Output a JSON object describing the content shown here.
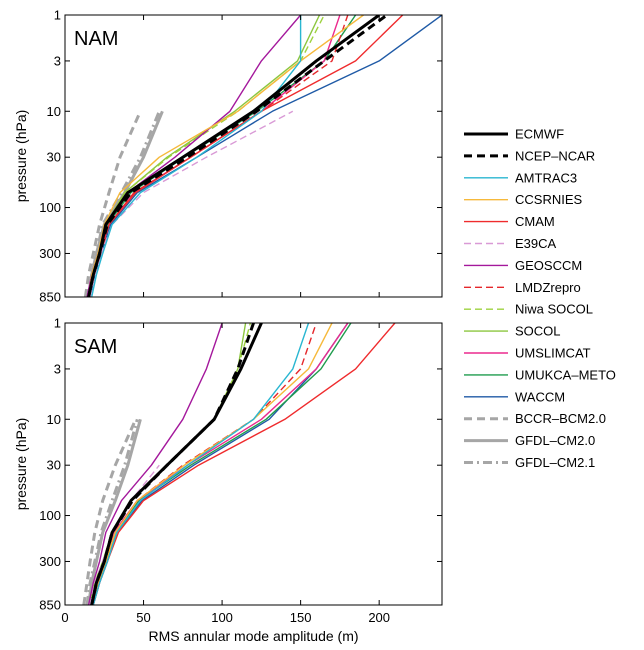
{
  "chart_data": [
    {
      "type": "line",
      "panel_label": "NAM",
      "xlim": [
        0,
        240
      ],
      "ylim": [
        850,
        1
      ],
      "yscale": "log",
      "xticks": [
        0,
        50,
        100,
        150,
        200
      ],
      "yticks": [
        1,
        3,
        10,
        30,
        100,
        300,
        850
      ],
      "ylabel": "pressure (hPa)",
      "xlabel": "",
      "grid": false,
      "series": [
        {
          "name": "ECMWF",
          "x": [
            15,
            18,
            22,
            26,
            40,
            75,
            120,
            160,
            200
          ],
          "y": [
            850,
            500,
            300,
            150,
            70,
            30,
            10,
            3,
            1
          ]
        },
        {
          "name": "NCEP–NCAR",
          "x": [
            15,
            18,
            22,
            27,
            42,
            78,
            122,
            165,
            205
          ],
          "y": [
            850,
            500,
            300,
            150,
            70,
            30,
            10,
            3,
            1
          ]
        },
        {
          "name": "AMTRAC3",
          "x": [
            17,
            20,
            24,
            30,
            48,
            84,
            125,
            150,
            150
          ],
          "y": [
            850,
            500,
            300,
            150,
            70,
            30,
            10,
            3,
            1
          ]
        },
        {
          "name": "CCSRNIES",
          "x": [
            15,
            17,
            21,
            25,
            35,
            60,
            110,
            150,
            190
          ],
          "y": [
            850,
            500,
            300,
            150,
            70,
            30,
            10,
            3,
            1
          ]
        },
        {
          "name": "CMAM",
          "x": [
            15,
            18,
            22,
            28,
            45,
            80,
            125,
            185,
            215
          ],
          "y": [
            850,
            500,
            300,
            150,
            70,
            30,
            10,
            3,
            1
          ]
        },
        {
          "name": "E39CA",
          "x": [
            16,
            19,
            23,
            30,
            50,
            90,
            145
          ],
          "y": [
            850,
            500,
            300,
            150,
            70,
            30,
            10
          ]
        },
        {
          "name": "GEOSCCM",
          "x": [
            14,
            17,
            21,
            26,
            40,
            70,
            105,
            125,
            150
          ],
          "y": [
            850,
            500,
            300,
            150,
            70,
            30,
            10,
            3,
            1
          ]
        },
        {
          "name": "LMDZrepro",
          "x": [
            15,
            18,
            23,
            28,
            44,
            80,
            125,
            170,
            180
          ],
          "y": [
            850,
            500,
            300,
            150,
            70,
            30,
            10,
            3,
            1
          ]
        },
        {
          "name": "Niwa SOCOL",
          "x": [
            15,
            17,
            21,
            26,
            38,
            66,
            110,
            150,
            165
          ],
          "y": [
            850,
            500,
            300,
            150,
            70,
            30,
            10,
            3,
            1
          ]
        },
        {
          "name": "SOCOL",
          "x": [
            15,
            17,
            21,
            26,
            38,
            65,
            108,
            148,
            162
          ],
          "y": [
            850,
            500,
            300,
            150,
            70,
            30,
            10,
            3,
            1
          ]
        },
        {
          "name": "UMSLIMCAT",
          "x": [
            15,
            18,
            22,
            28,
            44,
            80,
            125,
            165,
            175
          ],
          "y": [
            850,
            500,
            300,
            150,
            70,
            30,
            10,
            3,
            1
          ]
        },
        {
          "name": "UMUKCA–METO",
          "x": [
            15,
            18,
            22,
            27,
            42,
            76,
            122,
            165,
            185
          ],
          "y": [
            850,
            500,
            300,
            150,
            70,
            30,
            10,
            3,
            1
          ]
        },
        {
          "name": "WACCM",
          "x": [
            16,
            19,
            23,
            29,
            46,
            84,
            132,
            200,
            240
          ],
          "y": [
            850,
            500,
            300,
            150,
            70,
            30,
            10,
            3,
            1
          ]
        },
        {
          "name": "BCCR–BCM2.0",
          "x": [
            13,
            15,
            18,
            22,
            28,
            35,
            48
          ],
          "y": [
            850,
            500,
            300,
            150,
            70,
            30,
            10
          ]
        },
        {
          "name": "GFDL–CM2.0",
          "x": [
            15,
            17,
            20,
            25,
            38,
            50,
            62
          ],
          "y": [
            850,
            500,
            300,
            150,
            70,
            30,
            10
          ]
        },
        {
          "name": "GFDL–CM2.1",
          "x": [
            15,
            17,
            20,
            24,
            36,
            48,
            60
          ],
          "y": [
            850,
            500,
            300,
            150,
            70,
            30,
            10
          ]
        }
      ]
    },
    {
      "type": "line",
      "panel_label": "SAM",
      "xlim": [
        0,
        240
      ],
      "ylim": [
        850,
        1
      ],
      "yscale": "log",
      "xticks": [
        0,
        50,
        100,
        150,
        200
      ],
      "yticks": [
        1,
        3,
        10,
        30,
        100,
        300,
        850
      ],
      "ylabel": "pressure (hPa)",
      "xlabel": "RMS annular mode amplitude (m)",
      "grid": false,
      "series": [
        {
          "name": "ECMWF",
          "x": [
            17,
            20,
            25,
            30,
            42,
            65,
            95,
            112,
            125
          ],
          "y": [
            850,
            500,
            300,
            150,
            70,
            30,
            10,
            3,
            1
          ]
        },
        {
          "name": "NCEP–NCAR",
          "x": [
            17,
            20,
            25,
            30,
            43,
            65,
            95,
            110,
            120
          ],
          "y": [
            850,
            500,
            300,
            150,
            70,
            30,
            10,
            3,
            1
          ]
        },
        {
          "name": "AMTRAC3",
          "x": [
            18,
            22,
            27,
            33,
            48,
            78,
            120,
            145,
            155
          ],
          "y": [
            850,
            500,
            300,
            150,
            70,
            30,
            10,
            3,
            1
          ]
        },
        {
          "name": "CCSRNIES",
          "x": [
            17,
            21,
            26,
            32,
            46,
            76,
            120,
            155,
            170
          ],
          "y": [
            850,
            500,
            300,
            150,
            70,
            30,
            10,
            3,
            1
          ]
        },
        {
          "name": "CMAM",
          "x": [
            18,
            22,
            27,
            34,
            50,
            85,
            140,
            185,
            210
          ],
          "y": [
            850,
            500,
            300,
            150,
            70,
            30,
            10,
            3,
            1
          ]
        },
        {
          "name": "E39CA",
          "x": [
            16,
            19,
            24,
            30,
            42,
            60
          ],
          "y": [
            850,
            500,
            300,
            150,
            70,
            30
          ]
        },
        {
          "name": "GEOSCCM",
          "x": [
            15,
            18,
            22,
            26,
            36,
            55,
            75,
            90,
            100
          ],
          "y": [
            850,
            500,
            300,
            150,
            70,
            30,
            10,
            3,
            1
          ]
        },
        {
          "name": "LMDZrepro",
          "x": [
            17,
            21,
            26,
            32,
            46,
            75,
            120,
            150,
            160
          ],
          "y": [
            850,
            500,
            300,
            150,
            70,
            30,
            10,
            3,
            1
          ]
        },
        {
          "name": "Niwa SOCOL",
          "x": [
            16,
            19,
            24,
            30,
            42,
            65,
            95,
            110,
            118
          ],
          "y": [
            850,
            500,
            300,
            150,
            70,
            30,
            10,
            3,
            1
          ]
        },
        {
          "name": "SOCOL",
          "x": [
            16,
            19,
            24,
            30,
            42,
            65,
            95,
            110,
            115
          ],
          "y": [
            850,
            500,
            300,
            150,
            70,
            30,
            10,
            3,
            1
          ]
        },
        {
          "name": "UMSLIMCAT",
          "x": [
            16,
            20,
            25,
            31,
            46,
            78,
            125,
            160,
            180
          ],
          "y": [
            850,
            500,
            300,
            150,
            70,
            30,
            10,
            3,
            1
          ]
        },
        {
          "name": "UMUKCA–METO",
          "x": [
            17,
            21,
            26,
            32,
            47,
            80,
            128,
            163,
            182
          ],
          "y": [
            850,
            500,
            300,
            150,
            70,
            30,
            10,
            3,
            1
          ]
        },
        {
          "name": "WACCM",
          "x": [
            18,
            22,
            27,
            33,
            49,
            82,
            130,
            160,
            180
          ],
          "y": [
            850,
            500,
            300,
            150,
            70,
            30,
            10,
            3,
            1
          ]
        },
        {
          "name": "BCCR–BCM2.0",
          "x": [
            12,
            14,
            16,
            19,
            24,
            32,
            45
          ],
          "y": [
            850,
            500,
            300,
            150,
            70,
            30,
            10
          ]
        },
        {
          "name": "GFDL–CM2.0",
          "x": [
            15,
            17,
            20,
            24,
            32,
            40,
            48
          ],
          "y": [
            850,
            500,
            300,
            150,
            70,
            30,
            10
          ]
        },
        {
          "name": "GFDL–CM2.1",
          "x": [
            14,
            16,
            19,
            23,
            30,
            38,
            46
          ],
          "y": [
            850,
            500,
            300,
            150,
            70,
            30,
            10
          ]
        }
      ]
    }
  ],
  "legend": {
    "position": "right",
    "entries": [
      {
        "label": "ECMWF",
        "color": "#000000",
        "dash": "solid",
        "weight": "bold"
      },
      {
        "label": "NCEP–NCAR",
        "color": "#000000",
        "dash": "dashed",
        "weight": "bold"
      },
      {
        "label": "AMTRAC3",
        "color": "#29b6d1",
        "dash": "solid",
        "weight": "normal"
      },
      {
        "label": "CCSRNIES",
        "color": "#f6b93b",
        "dash": "solid",
        "weight": "normal"
      },
      {
        "label": "CMAM",
        "color": "#ef2b2d",
        "dash": "solid",
        "weight": "normal"
      },
      {
        "label": "E39CA",
        "color": "#d99ad6",
        "dash": "dashed",
        "weight": "normal"
      },
      {
        "label": "GEOSCCM",
        "color": "#a4189c",
        "dash": "solid",
        "weight": "normal"
      },
      {
        "label": "LMDZrepro",
        "color": "#e5272b",
        "dash": "dashed",
        "weight": "normal"
      },
      {
        "label": "Niwa SOCOL",
        "color": "#9dd23f",
        "dash": "dashed",
        "weight": "normal"
      },
      {
        "label": "SOCOL",
        "color": "#8cc63f",
        "dash": "solid",
        "weight": "normal"
      },
      {
        "label": "UMSLIMCAT",
        "color": "#ec2a8d",
        "dash": "solid",
        "weight": "normal"
      },
      {
        "label": "UMUKCA–METO",
        "color": "#1f9c4d",
        "dash": "solid",
        "weight": "normal"
      },
      {
        "label": "WACCM",
        "color": "#1f5aa6",
        "dash": "solid",
        "weight": "normal"
      },
      {
        "label": "BCCR–BCM2.0",
        "color": "#a6a6a6",
        "dash": "dashed",
        "weight": "bold"
      },
      {
        "label": "GFDL–CM2.0",
        "color": "#a6a6a6",
        "dash": "solid",
        "weight": "bold"
      },
      {
        "label": "GFDL–CM2.1",
        "color": "#a6a6a6",
        "dashdot": true,
        "dash": "dashdot",
        "weight": "bold"
      }
    ]
  }
}
